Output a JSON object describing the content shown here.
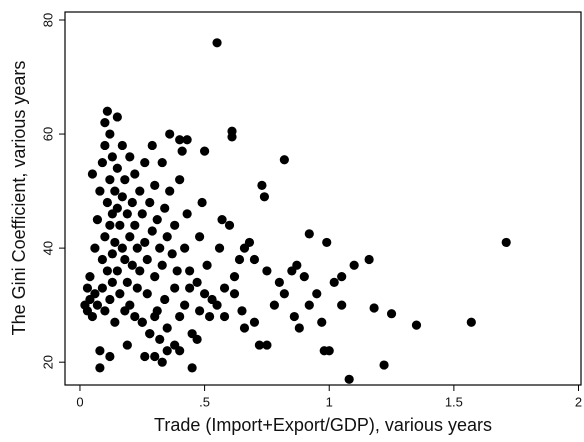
{
  "chart_data": {
    "type": "scatter",
    "xlabel": "Trade (Import+Export/GDP), various years",
    "ylabel": "The Gini Coefficient, various years",
    "xlim": [
      -0.06,
      2.01
    ],
    "ylim": [
      16,
      81.4
    ],
    "xticks": [
      0,
      {
        "value": 0.5,
        "label": ".5"
      },
      1,
      1.5,
      2
    ],
    "yticks": [
      20,
      40,
      60,
      80
    ],
    "series": [
      {
        "color": "#000000",
        "x": [
          0.55,
          1.71,
          1.57,
          1.35,
          1.22,
          1.08,
          1.16,
          1.1,
          1.05,
          1.02,
          0.99,
          0.92,
          0.82,
          0.61,
          0.61,
          0.73,
          0.74,
          0.57,
          1.25,
          1.18,
          1.05,
          0.98,
          1.0,
          0.97,
          0.9,
          0.87,
          0.85,
          0.8,
          0.78,
          0.75,
          0.7,
          0.68,
          0.66,
          0.64,
          0.62,
          0.62,
          0.65,
          0.7,
          0.72,
          0.75,
          0.66,
          0.86,
          0.88,
          0.92,
          0.95,
          0.82,
          0.58,
          0.55,
          0.52,
          0.5,
          0.45,
          0.44,
          0.4,
          0.35,
          0.3,
          0.3,
          0.28,
          0.25,
          0.02,
          0.03,
          0.03,
          0.04,
          0.04,
          0.05,
          0.05,
          0.06,
          0.06,
          0.07,
          0.07,
          0.08,
          0.08,
          0.08,
          0.09,
          0.09,
          0.09,
          0.1,
          0.1,
          0.1,
          0.1,
          0.11,
          0.11,
          0.11,
          0.12,
          0.12,
          0.12,
          0.12,
          0.12,
          0.13,
          0.13,
          0.13,
          0.13,
          0.14,
          0.14,
          0.14,
          0.15,
          0.15,
          0.15,
          0.15,
          0.16,
          0.16,
          0.17,
          0.17,
          0.17,
          0.18,
          0.18,
          0.18,
          0.19,
          0.19,
          0.2,
          0.2,
          0.2,
          0.21,
          0.21,
          0.22,
          0.22,
          0.22,
          0.23,
          0.23,
          0.24,
          0.24,
          0.25,
          0.25,
          0.26,
          0.26,
          0.27,
          0.27,
          0.28,
          0.28,
          0.29,
          0.29,
          0.3,
          0.3,
          0.31,
          0.31,
          0.32,
          0.32,
          0.33,
          0.33,
          0.34,
          0.34,
          0.35,
          0.35,
          0.36,
          0.36,
          0.37,
          0.38,
          0.38,
          0.39,
          0.4,
          0.4,
          0.41,
          0.42,
          0.42,
          0.43,
          0.44,
          0.45,
          0.47,
          0.48,
          0.48,
          0.5,
          0.51,
          0.53,
          0.56,
          0.58,
          0.6,
          0.47,
          0.49,
          0.38,
          0.33,
          0.26,
          0.19,
          0.43,
          0.4
        ],
        "y": [
          76,
          41,
          27,
          26.5,
          19.5,
          17,
          38,
          37,
          35,
          34,
          41,
          42.5,
          55.5,
          60.5,
          59.5,
          51,
          49,
          45,
          28.5,
          29.5,
          30,
          22,
          22,
          27,
          35,
          37,
          36,
          34,
          30,
          36,
          38,
          41,
          40,
          38,
          35,
          32,
          29,
          27,
          23,
          23,
          26,
          28,
          26,
          30,
          32,
          32,
          33,
          30,
          28,
          32,
          19,
          33,
          22,
          22,
          21,
          28,
          25,
          27,
          30,
          33,
          29,
          35,
          31,
          28,
          53,
          40,
          32,
          45,
          30,
          50,
          22,
          19,
          55,
          38,
          33,
          62,
          58,
          42,
          29,
          64,
          48,
          36,
          60,
          52,
          44,
          31,
          21,
          56,
          46,
          39,
          34,
          50,
          41,
          27,
          63,
          54,
          47,
          36,
          44,
          32,
          58,
          49,
          40,
          52,
          38,
          29,
          46,
          34,
          56,
          42,
          30,
          48,
          37,
          53,
          44,
          28,
          40,
          33,
          50,
          36,
          46,
          27,
          55,
          41,
          38,
          32,
          48,
          25,
          58,
          43,
          51,
          35,
          45,
          29,
          40,
          24,
          55,
          37,
          47,
          31,
          42,
          26,
          60,
          50,
          39,
          44,
          33,
          36,
          52,
          28,
          57,
          40,
          30,
          46,
          36,
          25,
          34,
          42,
          29,
          57,
          37,
          31,
          40,
          28,
          44,
          24,
          48,
          23,
          20,
          21,
          23,
          59,
          59
        ]
      }
    ]
  }
}
